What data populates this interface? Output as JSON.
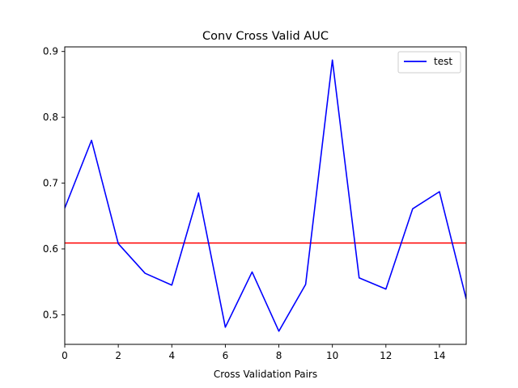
{
  "chart_data": {
    "type": "line",
    "title": "Conv Cross Valid AUC",
    "xlabel": "Cross Validation Pairs",
    "ylabel": "",
    "xlim": [
      0,
      15
    ],
    "ylim": [
      0.455,
      0.907
    ],
    "xticks": [
      "0",
      "2",
      "4",
      "6",
      "8",
      "10",
      "12",
      "14"
    ],
    "xtick_values": [
      0,
      2,
      4,
      6,
      8,
      10,
      12,
      14
    ],
    "yticks": [
      "0.5",
      "0.6",
      "0.7",
      "0.8",
      "0.9"
    ],
    "ytick_values": [
      0.5,
      0.6,
      0.7,
      0.8,
      0.9
    ],
    "grid": false,
    "legend_position": "top-right",
    "series": [
      {
        "name": "test",
        "color": "#0000ff",
        "x": [
          0,
          1,
          2,
          3,
          4,
          5,
          6,
          7,
          8,
          9,
          10,
          11,
          12,
          13,
          14,
          15
        ],
        "y": [
          0.662,
          0.765,
          0.608,
          0.563,
          0.545,
          0.685,
          0.481,
          0.565,
          0.475,
          0.546,
          0.887,
          0.556,
          0.539,
          0.661,
          0.687,
          0.524
        ]
      }
    ],
    "hlines": [
      {
        "y": 0.609,
        "color": "#ff0000"
      }
    ]
  }
}
